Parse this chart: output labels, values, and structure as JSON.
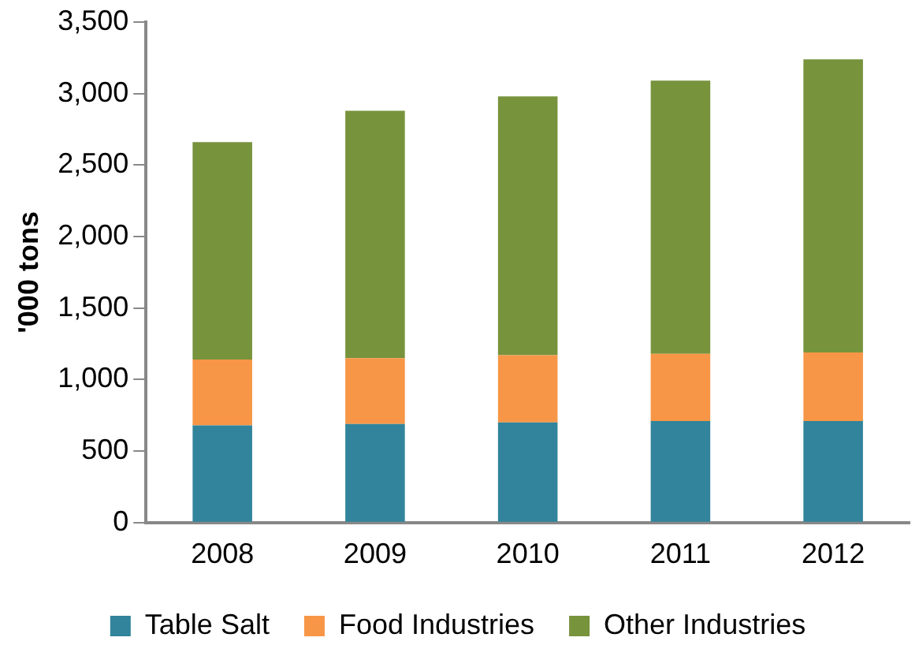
{
  "chart_data": {
    "type": "bar",
    "stacked": true,
    "ylabel": "'000 tons",
    "categories": [
      "2008",
      "2009",
      "2010",
      "2011",
      "2012"
    ],
    "series": [
      {
        "name": "Table Salt",
        "color": "#31849b",
        "values": [
          680,
          690,
          700,
          710,
          710
        ]
      },
      {
        "name": "Food Industries",
        "color": "#f79646",
        "values": [
          460,
          460,
          470,
          470,
          480
        ]
      },
      {
        "name": "Other Industries",
        "color": "#77933c",
        "values": [
          1520,
          1730,
          1810,
          1910,
          2050
        ]
      }
    ],
    "ylim": [
      0,
      3500
    ],
    "yticks": [
      0,
      500,
      {
        "value": 1000,
        "label": "1,000"
      },
      {
        "value": 1500,
        "label": "1,500"
      },
      {
        "value": 2000,
        "label": "2,000"
      },
      {
        "value": 2500,
        "label": "2,500"
      },
      {
        "value": 3000,
        "label": "3,000"
      },
      {
        "value": 3500,
        "label": "3,500"
      }
    ],
    "grid": false,
    "legend": "bottom"
  }
}
